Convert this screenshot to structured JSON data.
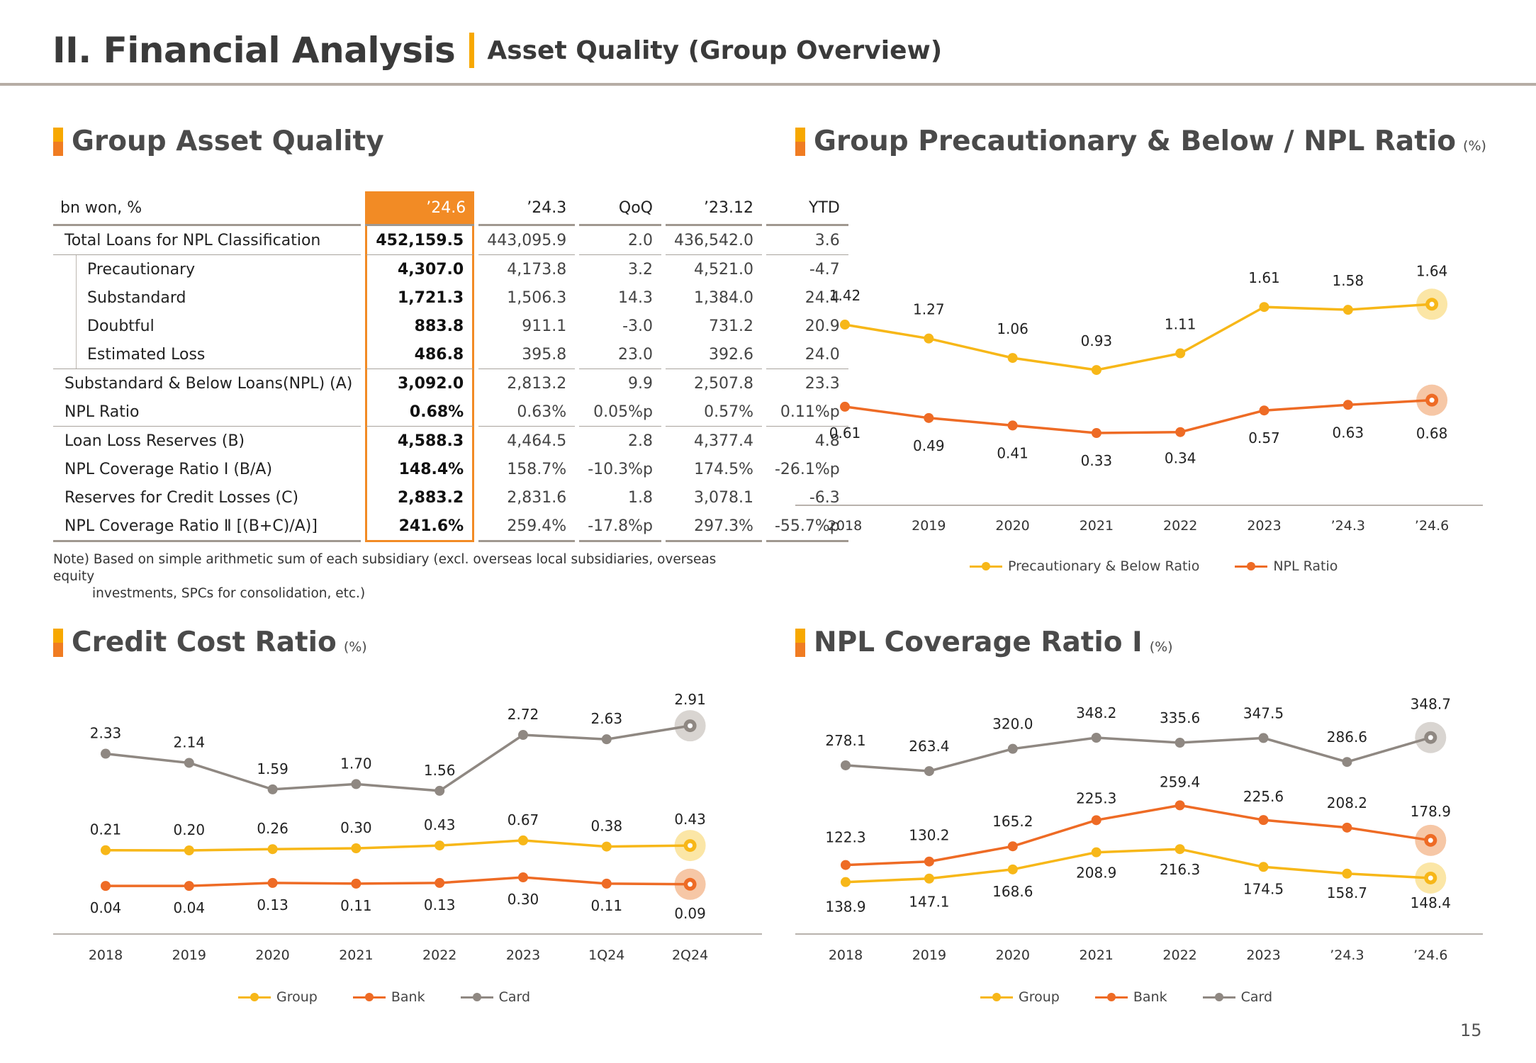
{
  "header": {
    "title": "II. Financial Analysis",
    "subtitle": "Asset Quality (Group Overview)"
  },
  "colors": {
    "yellow": "#f7b718",
    "orange": "#ee6b25",
    "gray": "#8f8882",
    "accent_header": "#f28b25"
  },
  "table": {
    "title": "Group Asset Quality",
    "columns": [
      "bn won, %",
      "’24.6",
      "’24.3",
      "QoQ",
      "’23.12",
      "YTD"
    ],
    "rows": [
      {
        "label": "Total Loans for NPL Classification",
        "values": [
          "452,159.5",
          "443,095.9",
          "2.0",
          "436,542.0",
          "3.6"
        ]
      },
      {
        "label": "Precautionary",
        "values": [
          "4,307.0",
          "4,173.8",
          "3.2",
          "4,521.0",
          "-4.7"
        ]
      },
      {
        "label": "Substandard",
        "values": [
          "1,721.3",
          "1,506.3",
          "14.3",
          "1,384.0",
          "24.4"
        ]
      },
      {
        "label": "Doubtful",
        "values": [
          "883.8",
          "911.1",
          "-3.0",
          "731.2",
          "20.9"
        ]
      },
      {
        "label": "Estimated Loss",
        "values": [
          "486.8",
          "395.8",
          "23.0",
          "392.6",
          "24.0"
        ]
      },
      {
        "label": "Substandard & Below Loans(NPL) (A)",
        "values": [
          "3,092.0",
          "2,813.2",
          "9.9",
          "2,507.8",
          "23.3"
        ]
      },
      {
        "label": "NPL Ratio",
        "values": [
          "0.68%",
          "0.63%",
          "0.05%p",
          "0.57%",
          "0.11%p"
        ]
      },
      {
        "label": "Loan Loss Reserves (B)",
        "values": [
          "4,588.3",
          "4,464.5",
          "2.8",
          "4,377.4",
          "4.8"
        ]
      },
      {
        "label": "NPL Coverage Ratio Ⅰ (B/A)",
        "values": [
          "148.4%",
          "158.7%",
          "-10.3%p",
          "174.5%",
          "-26.1%p"
        ]
      },
      {
        "label": "Reserves for Credit Losses (C)",
        "values": [
          "2,883.2",
          "2,831.6",
          "1.8",
          "3,078.1",
          "-6.3"
        ]
      },
      {
        "label": "NPL Coverage Ratio Ⅱ [(B+C)/A)]",
        "values": [
          "241.6%",
          "259.4%",
          "-17.8%p",
          "297.3%",
          "-55.7%p"
        ]
      }
    ],
    "note_line1": "Note) Based on simple arithmetic sum of each subsidiary (excl. overseas local subsidiaries, overseas equity",
    "note_line2": "investments, SPCs for consolidation, etc.)"
  },
  "titles": {
    "npl": "Group Precautionary & Below / NPL Ratio",
    "credit": "Credit Cost Ratio",
    "coverage": "NPL Coverage Ratio Ⅰ",
    "unit": "(%)"
  },
  "chart_data": [
    {
      "id": "npl",
      "type": "line",
      "title": "Group Precautionary & Below / NPL Ratio",
      "categories": [
        "2018",
        "2019",
        "2020",
        "2021",
        "2022",
        "2023",
        "’24.3",
        "’24.6"
      ],
      "series": [
        {
          "name": "Precautionary & Below Ratio",
          "color": "#f7b718",
          "values": [
            1.42,
            1.27,
            1.06,
            0.93,
            1.11,
            1.61,
            1.58,
            1.64
          ],
          "labels": [
            "1.42",
            "1.27",
            "1.06",
            "0.93",
            "1.11",
            "1.61",
            "1.58",
            "1.64"
          ]
        },
        {
          "name": "NPL Ratio",
          "color": "#ee6b25",
          "values": [
            0.61,
            0.49,
            0.41,
            0.33,
            0.34,
            0.57,
            0.63,
            0.68
          ],
          "labels": [
            "0.61",
            "0.49",
            "0.41",
            "0.33",
            "0.34",
            "0.57",
            "0.63",
            "0.68"
          ]
        }
      ]
    },
    {
      "id": "credit",
      "type": "line",
      "title": "Credit Cost Ratio",
      "categories": [
        "2018",
        "2019",
        "2020",
        "2021",
        "2022",
        "2023",
        "1Q24",
        "2Q24"
      ],
      "series": [
        {
          "name": "Group",
          "color": "#f7b718",
          "values": [
            0.21,
            0.2,
            0.26,
            0.3,
            0.43,
            0.67,
            0.38,
            0.43
          ],
          "labels": [
            "0.21",
            "0.20",
            "0.26",
            "0.30",
            "0.43",
            "0.67",
            "0.38",
            "0.43"
          ]
        },
        {
          "name": "Bank",
          "color": "#ee6b25",
          "values": [
            0.04,
            0.04,
            0.13,
            0.11,
            0.13,
            0.3,
            0.11,
            0.09
          ],
          "labels": [
            "0.04",
            "0.04",
            "0.13",
            "0.11",
            "0.13",
            "0.30",
            "0.11",
            "0.09"
          ]
        },
        {
          "name": "Card",
          "color": "#8f8882",
          "values": [
            2.33,
            2.14,
            1.59,
            1.7,
            1.56,
            2.72,
            2.63,
            2.91
          ],
          "labels": [
            "2.33",
            "2.14",
            "1.59",
            "1.70",
            "1.56",
            "2.72",
            "2.63",
            "2.91"
          ]
        }
      ]
    },
    {
      "id": "coverage",
      "type": "line",
      "title": "NPL Coverage Ratio Ⅰ",
      "categories": [
        "2018",
        "2019",
        "2020",
        "2021",
        "2022",
        "2023",
        "’24.3",
        "’24.6"
      ],
      "series": [
        {
          "name": "Group",
          "color": "#f7b718",
          "values": [
            138.9,
            147.1,
            168.6,
            208.9,
            216.3,
            174.5,
            158.7,
            148.4
          ],
          "labels": [
            "138.9",
            "147.1",
            "168.6",
            "208.9",
            "216.3",
            "174.5",
            "158.7",
            "148.4"
          ]
        },
        {
          "name": "Bank",
          "color": "#ee6b25",
          "values": [
            122.3,
            130.2,
            165.2,
            225.3,
            259.4,
            225.6,
            208.2,
            178.9
          ],
          "labels": [
            "122.3",
            "130.2",
            "165.2",
            "225.3",
            "259.4",
            "225.6",
            "208.2",
            "178.9"
          ]
        },
        {
          "name": "Card",
          "color": "#8f8882",
          "values": [
            278.1,
            263.4,
            320.0,
            348.2,
            335.6,
            347.5,
            286.6,
            348.7
          ],
          "labels": [
            "278.1",
            "263.4",
            "320.0",
            "348.2",
            "335.6",
            "347.5",
            "286.6",
            "348.7"
          ]
        }
      ]
    }
  ],
  "page_number": "15"
}
